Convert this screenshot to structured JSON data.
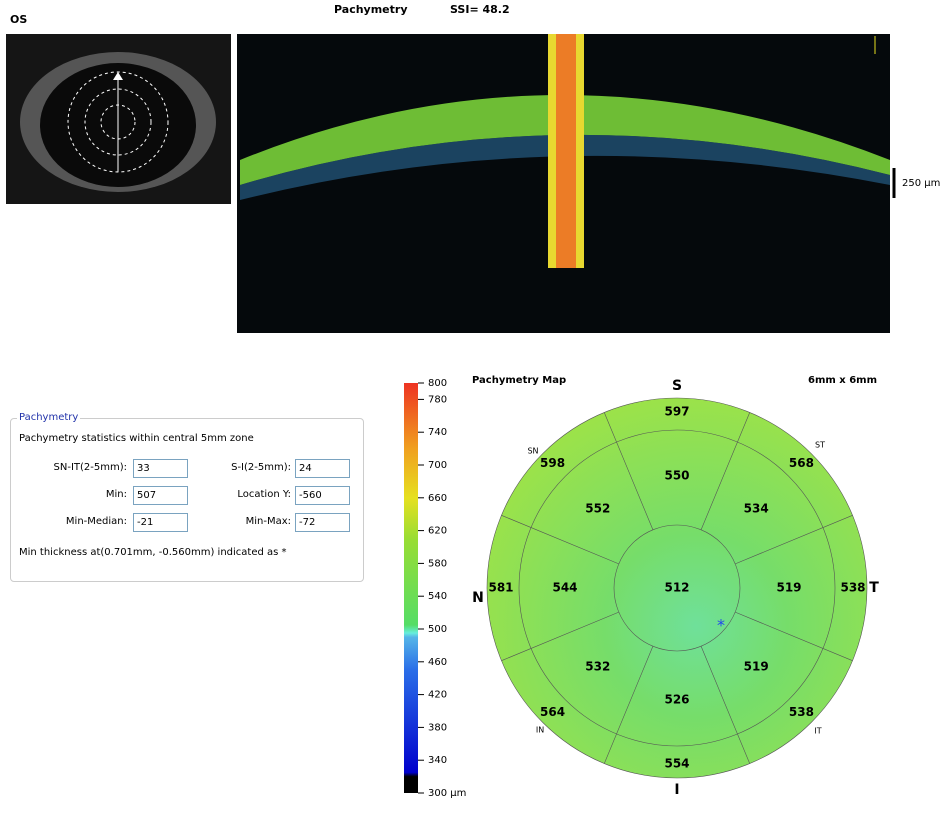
{
  "header": {
    "eye": "OS",
    "title": "Pachymetry",
    "ssi": "SSI= 48.2"
  },
  "scan": {
    "scale_bar": "250 µm"
  },
  "statistics": {
    "legend": "Pachymetry",
    "description": "Pachymetry statistics within central 5mm zone",
    "fields": [
      {
        "label": "SN-IT(2-5mm):",
        "value": 33
      },
      {
        "label": "S-I(2-5mm):",
        "value": 24
      },
      {
        "label": "Min:",
        "value": 507
      },
      {
        "label": "Location Y:",
        "value": -560
      },
      {
        "label": "Min-Median:",
        "value": -21
      },
      {
        "label": "Min-Max:",
        "value": -72
      }
    ],
    "note": "Min thickness at(0.701mm, -0.560mm) indicated as *"
  },
  "color_scale": {
    "range": [
      300,
      800
    ],
    "ticks": [
      {
        "value": 300,
        "label": "300 µm"
      },
      340,
      380,
      420,
      460,
      500,
      540,
      580,
      620,
      660,
      700,
      740,
      780,
      800
    ]
  },
  "map": {
    "title": "Pachymetry Map",
    "size": "6mm x 6mm",
    "compass": {
      "superior": "S",
      "temporal": "T",
      "inferior": "I",
      "nasal": "N"
    },
    "sector_labels": {
      "sn": "SN",
      "st": "ST",
      "in": "IN",
      "it": "IT"
    },
    "center": 512,
    "inner": [
      550,
      534,
      519,
      519,
      526,
      532,
      544,
      552
    ],
    "outer": [
      597,
      568,
      538,
      538,
      554,
      564,
      581,
      598
    ],
    "min_marker": "*"
  }
}
